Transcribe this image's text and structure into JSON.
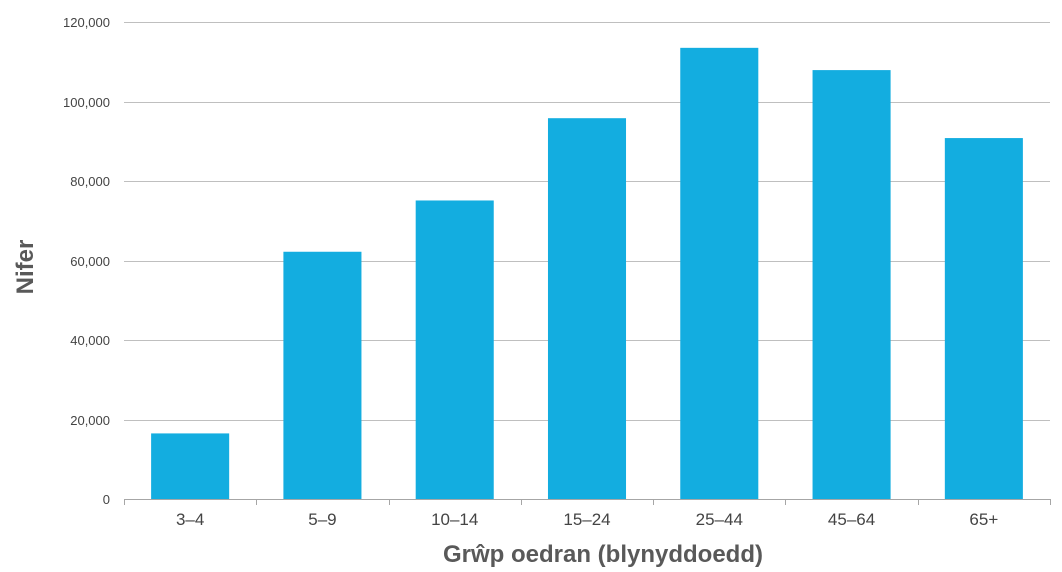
{
  "chart_data": {
    "type": "bar",
    "title": "",
    "xlabel": "Grŵp oedran (blynyddoedd)",
    "ylabel": "Nifer",
    "categories": [
      "3–4",
      "5–9",
      "10–14",
      "15–24",
      "25–44",
      "45–64",
      "65+"
    ],
    "values": [
      16500,
      62200,
      75100,
      95800,
      113500,
      107900,
      90800
    ],
    "ylim": [
      0,
      120000
    ],
    "yticks": [
      0,
      20000,
      40000,
      60000,
      80000,
      100000,
      120000
    ],
    "ytick_labels": [
      "0",
      "20,000",
      "40,000",
      "60,000",
      "80,000",
      "100,000",
      "120,000"
    ],
    "grid": true,
    "legend": "none",
    "colors": {
      "bar": "#13ade0",
      "grid": "#bfbfbf",
      "axis": "#a6a6a6"
    }
  }
}
